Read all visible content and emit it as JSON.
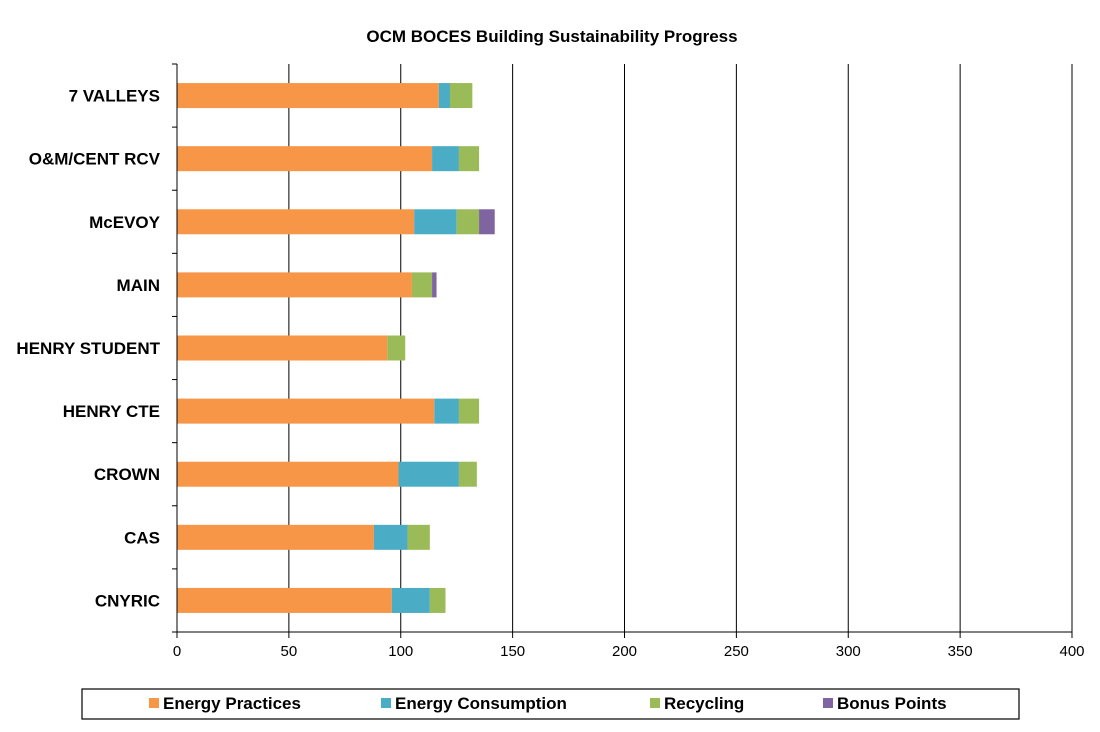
{
  "chart_data": {
    "type": "bar",
    "orientation": "horizontal",
    "stacked": true,
    "title": "OCM BOCES Building Sustainability Progress",
    "xlabel": "",
    "ylabel": "",
    "xlim": [
      0,
      400
    ],
    "x_ticks": [
      0,
      50,
      100,
      150,
      200,
      250,
      300,
      350,
      400
    ],
    "grid": "vertical",
    "legend_position": "bottom",
    "categories": [
      "7 VALLEYS",
      "O&M/CENT RCV",
      "McEVOY",
      "MAIN",
      "HENRY STUDENT",
      "HENRY CTE",
      "CROWN",
      "CAS",
      "CNYRIC"
    ],
    "series": [
      {
        "name": "Energy Practices",
        "color": "#F79646",
        "values": [
          117,
          114,
          106,
          105,
          94,
          115,
          99,
          88,
          96
        ]
      },
      {
        "name": "Energy Consumption",
        "color": "#4BACC6",
        "values": [
          5,
          12,
          19,
          0,
          0,
          11,
          27,
          15,
          17
        ]
      },
      {
        "name": "Recycling",
        "color": "#9BBB59",
        "values": [
          10,
          9,
          10,
          9,
          8,
          9,
          8,
          10,
          7
        ]
      },
      {
        "name": "Bonus Points",
        "color": "#8064A2",
        "values": [
          0,
          0,
          7,
          2,
          0,
          0,
          0,
          0,
          0
        ]
      }
    ]
  }
}
